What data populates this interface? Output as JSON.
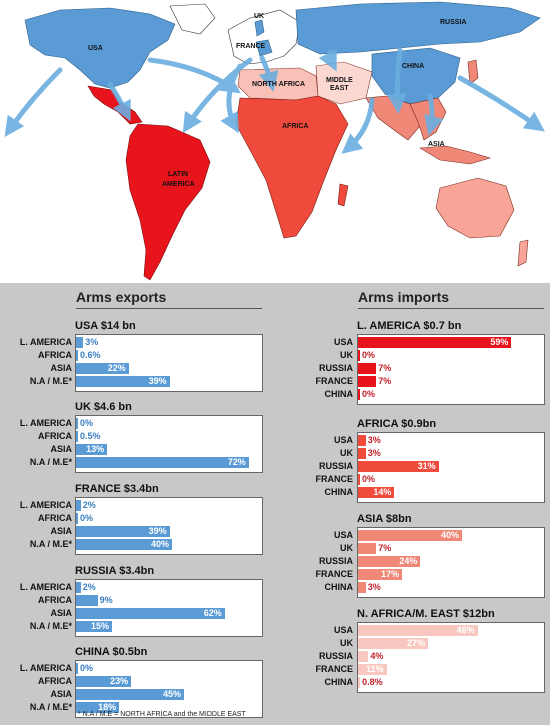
{
  "map": {
    "labels": {
      "usa": "USA",
      "uk": "UK",
      "russia": "RUSSIA",
      "france": "FRANCE",
      "china": "CHINA",
      "north_africa": "NORTH AFRICA",
      "middle_east_1": "MIDDLE",
      "middle_east_2": "EAST",
      "africa": "AFRICA",
      "asia": "ASIA",
      "latin_america_1": "LATIN",
      "latin_america_2": "AMERICA"
    },
    "colors": {
      "exporter_blue": "#5b9bd5",
      "latin_america": "#e8141b",
      "africa": "#ef4a3c",
      "asia": "#f08878",
      "north_africa": "#f8c0b6",
      "middle_east": "#fbd9d2",
      "arrow": "#6aaee0"
    }
  },
  "exports_title": "Arms exports",
  "imports_title": "Arms imports",
  "footnote": "* N.A / M.E = NORTH AFRICA and the MIDDLE EAST",
  "chart_data": [
    {
      "type": "bar",
      "group": "exports",
      "title": "USA $14 bn",
      "categories": [
        "L. AMERICA",
        "AFRICA",
        "ASIA",
        "N.A / M.E*"
      ],
      "values": [
        3,
        0.6,
        22,
        39
      ],
      "labels": [
        "3%",
        "0.6%",
        "22%",
        "39%"
      ],
      "unit": "%",
      "color": "#5b9bd5"
    },
    {
      "type": "bar",
      "group": "exports",
      "title": "UK $4.6 bn",
      "categories": [
        "L. AMERICA",
        "AFRICA",
        "ASIA",
        "N.A / M.E*"
      ],
      "values": [
        0,
        0.5,
        13,
        72
      ],
      "labels": [
        "0%",
        "0.5%",
        "13%",
        "72%"
      ],
      "unit": "%",
      "color": "#5b9bd5"
    },
    {
      "type": "bar",
      "group": "exports",
      "title": "FRANCE $3.4bn",
      "categories": [
        "L. AMERICA",
        "AFRICA",
        "ASIA",
        "N.A / M.E*"
      ],
      "values": [
        2,
        0,
        39,
        40
      ],
      "labels": [
        "2%",
        "0%",
        "39%",
        "40%"
      ],
      "unit": "%",
      "color": "#5b9bd5"
    },
    {
      "type": "bar",
      "group": "exports",
      "title": "RUSSIA $3.4bn",
      "categories": [
        "L. AMERICA",
        "AFRICA",
        "ASIA",
        "N.A / M.E*"
      ],
      "values": [
        2,
        9,
        62,
        15
      ],
      "labels": [
        "2%",
        "9%",
        "62%",
        "15%"
      ],
      "unit": "%",
      "color": "#5b9bd5"
    },
    {
      "type": "bar",
      "group": "exports",
      "title": "CHINA $0.5bn",
      "categories": [
        "L. AMERICA",
        "AFRICA",
        "ASIA",
        "N.A / M.E*"
      ],
      "values": [
        0,
        23,
        45,
        18
      ],
      "labels": [
        "0%",
        "23%",
        "45%",
        "18%"
      ],
      "unit": "%",
      "color": "#5b9bd5"
    },
    {
      "type": "bar",
      "group": "imports",
      "title": "L. AMERICA $0.7 bn",
      "categories": [
        "USA",
        "UK",
        "RUSSIA",
        "FRANCE",
        "CHINA"
      ],
      "values": [
        59,
        0,
        7,
        7,
        0
      ],
      "labels": [
        "59%",
        "0%",
        "7%",
        "7%",
        "0%"
      ],
      "unit": "%",
      "color": "#e8141b"
    },
    {
      "type": "bar",
      "group": "imports",
      "title": "AFRICA $0.9bn",
      "categories": [
        "USA",
        "UK",
        "RUSSIA",
        "FRANCE",
        "CHINA"
      ],
      "values": [
        3,
        3,
        31,
        0,
        14
      ],
      "labels": [
        "3%",
        "3%",
        "31%",
        "0%",
        "14%"
      ],
      "unit": "%",
      "color": "#ef4a3c"
    },
    {
      "type": "bar",
      "group": "imports",
      "title": "ASIA $8bn",
      "categories": [
        "USA",
        "UK",
        "RUSSIA",
        "FRANCE",
        "CHINA"
      ],
      "values": [
        40,
        7,
        24,
        17,
        3
      ],
      "labels": [
        "40%",
        "7%",
        "24%",
        "17%",
        "3%"
      ],
      "unit": "%",
      "color": "#f08878"
    },
    {
      "type": "bar",
      "group": "imports",
      "title": "N. AFRICA/M. EAST $12bn",
      "categories": [
        "USA",
        "UK",
        "RUSSIA",
        "FRANCE",
        "CHINA"
      ],
      "values": [
        46,
        27,
        4,
        11,
        0.8
      ],
      "labels": [
        "46%",
        "27%",
        "4%",
        "11%",
        "0.8%"
      ],
      "unit": "%",
      "color": "#f8c8c0"
    }
  ]
}
